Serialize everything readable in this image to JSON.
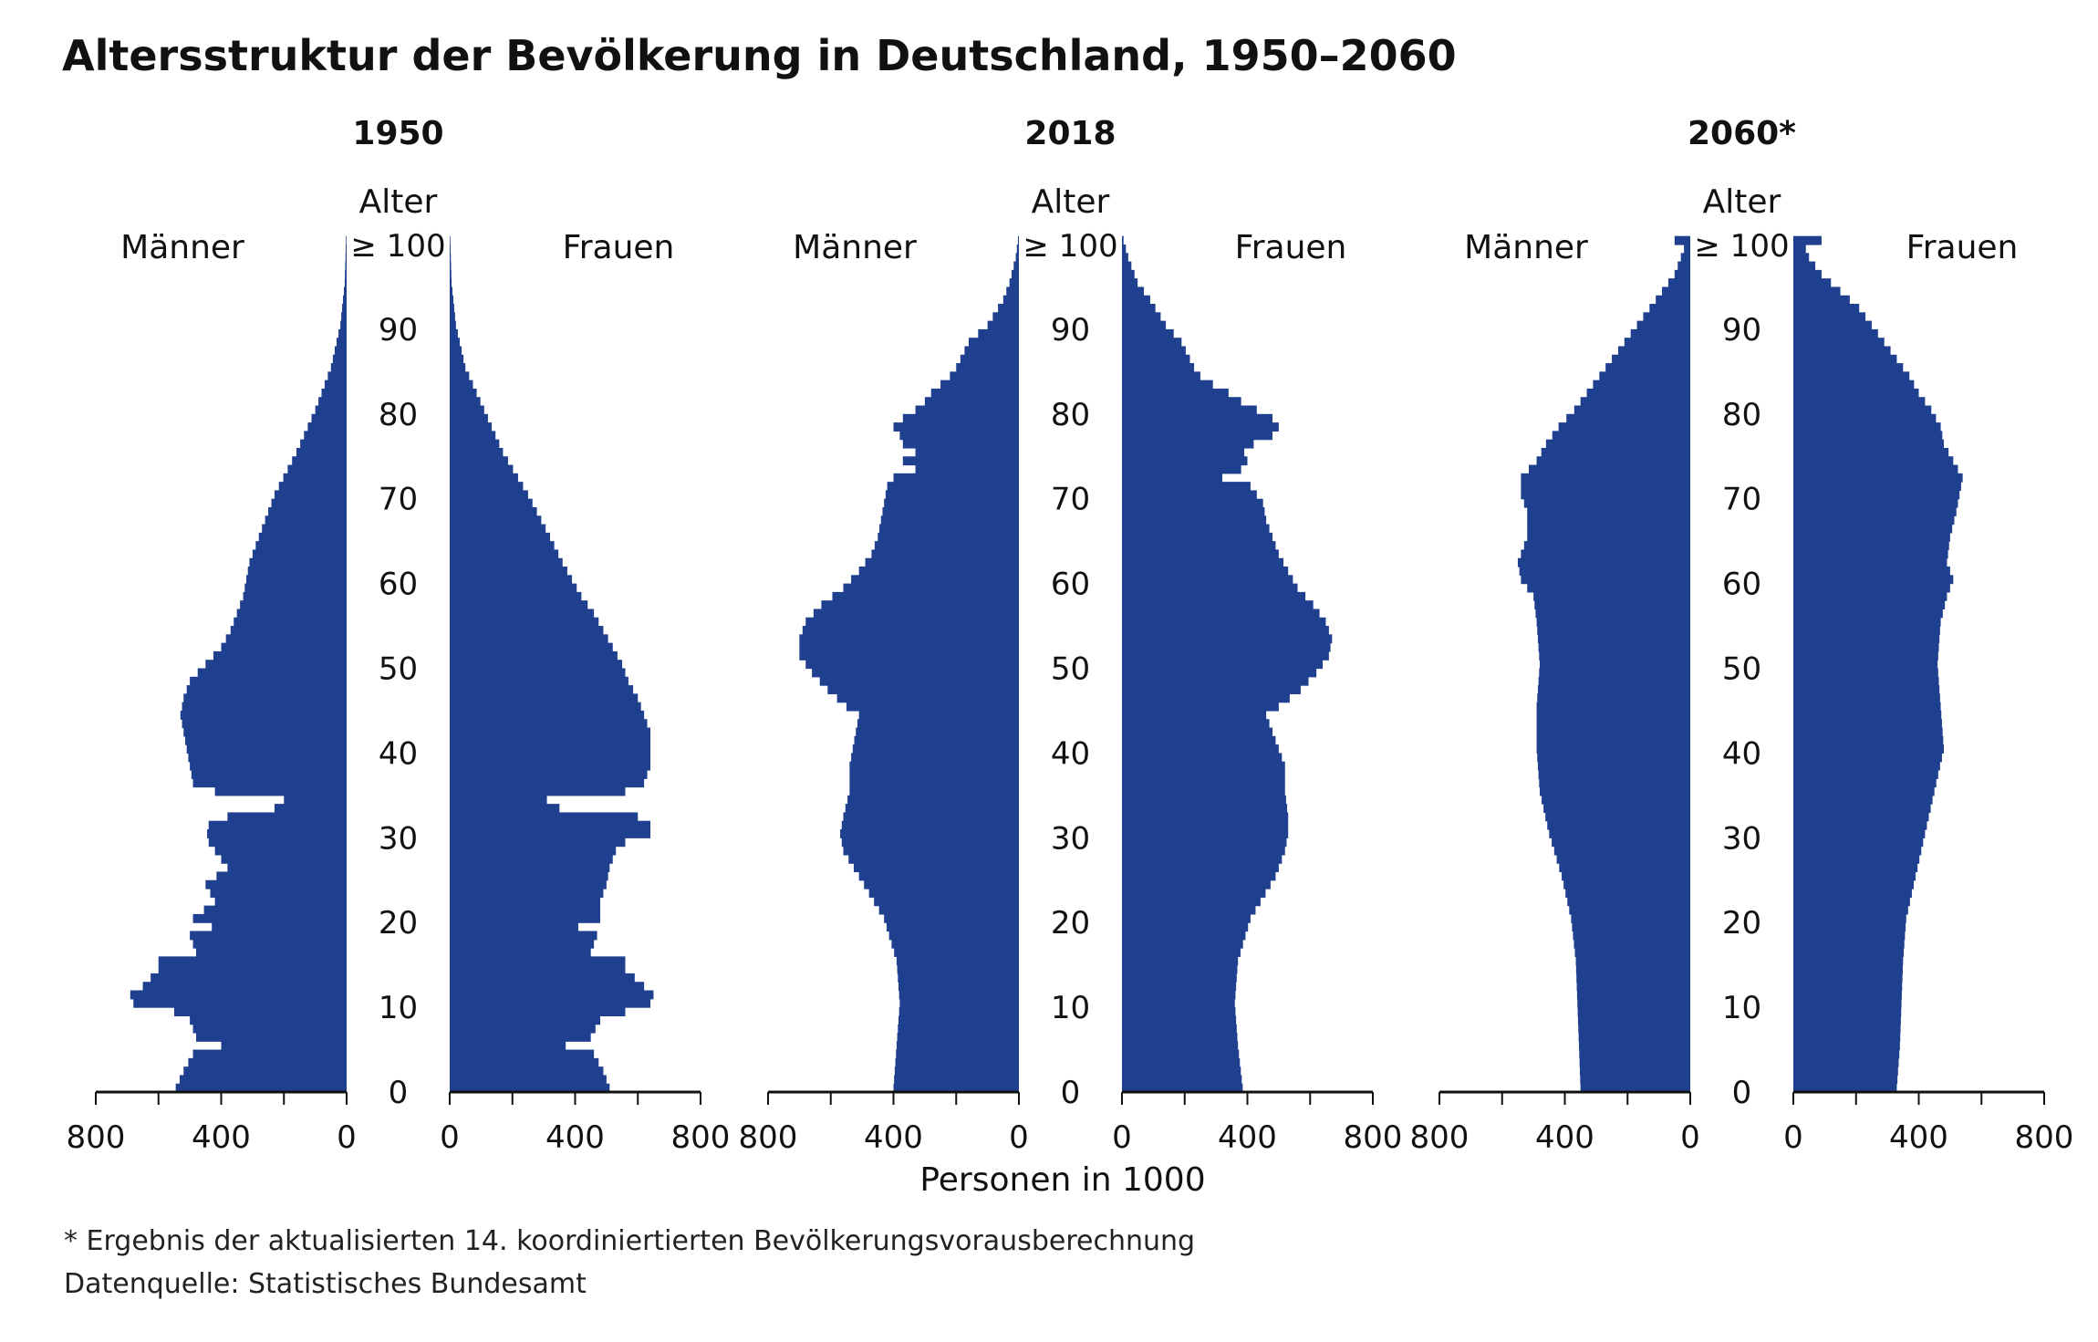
{
  "chart_data": {
    "type": "population-pyramid",
    "title": "Altersstruktur der Bevölkerung in Deutschland, 1950–2060",
    "axis_label_age": "Alter",
    "age_top_label": "≥ 100",
    "age_ticks": [
      0,
      10,
      20,
      30,
      40,
      50,
      60,
      70,
      80,
      90
    ],
    "left_label": "Männer",
    "right_label": "Frauen",
    "xlabel": "Personen in 1000",
    "xlim": [
      0,
      800
    ],
    "x_ticks": [
      800,
      400,
      0
    ],
    "x_ticks_right": [
      0,
      400,
      800
    ],
    "bar_color": "#1f3f8f",
    "panels": [
      {
        "name": "1950",
        "men": {
          "ages": [
            0,
            2,
            4,
            5,
            6,
            8,
            9,
            10,
            11,
            12,
            14,
            15,
            16,
            18,
            19,
            20,
            22,
            24,
            26,
            28,
            29,
            30,
            31,
            32,
            33,
            34,
            35,
            36,
            38,
            40,
            42,
            44,
            46,
            48,
            50,
            52,
            54,
            56,
            58,
            60,
            62,
            65,
            70,
            75,
            80,
            85,
            90,
            95,
            100
          ],
          "values": [
            545,
            520,
            490,
            400,
            480,
            500,
            550,
            680,
            690,
            650,
            600,
            600,
            480,
            500,
            430,
            490,
            420,
            450,
            380,
            420,
            440,
            445,
            440,
            380,
            230,
            200,
            420,
            490,
            500,
            510,
            520,
            530,
            520,
            500,
            450,
            400,
            370,
            350,
            330,
            320,
            310,
            280,
            230,
            160,
            100,
            50,
            20,
            6,
            2
          ]
        },
        "women": {
          "ages": [
            0,
            2,
            4,
            5,
            6,
            8,
            9,
            10,
            11,
            12,
            14,
            15,
            16,
            18,
            19,
            20,
            22,
            24,
            26,
            28,
            29,
            30,
            31,
            32,
            33,
            34,
            35,
            36,
            38,
            40,
            42,
            44,
            46,
            48,
            50,
            52,
            54,
            56,
            58,
            60,
            62,
            65,
            70,
            75,
            80,
            85,
            90,
            95,
            100
          ],
          "values": [
            510,
            490,
            460,
            370,
            450,
            480,
            560,
            640,
            650,
            620,
            560,
            560,
            450,
            470,
            410,
            480,
            480,
            500,
            510,
            530,
            560,
            640,
            640,
            600,
            350,
            310,
            560,
            620,
            640,
            640,
            640,
            620,
            600,
            570,
            550,
            520,
            490,
            460,
            420,
            390,
            360,
            320,
            250,
            170,
            110,
            50,
            20,
            6,
            2
          ]
        }
      },
      {
        "name": "2018",
        "men": {
          "ages": [
            0,
            5,
            10,
            15,
            20,
            25,
            28,
            30,
            32,
            35,
            38,
            40,
            42,
            44,
            45,
            47,
            49,
            51,
            53,
            55,
            57,
            59,
            61,
            63,
            65,
            67,
            69,
            71,
            72,
            73,
            74,
            75,
            76,
            77,
            78,
            79,
            80,
            81,
            82,
            83,
            84,
            85,
            88,
            90,
            93,
            95,
            98,
            100
          ],
          "values": [
            400,
            390,
            380,
            390,
            430,
            510,
            560,
            570,
            560,
            540,
            540,
            530,
            520,
            510,
            550,
            610,
            660,
            700,
            700,
            680,
            630,
            560,
            510,
            470,
            450,
            440,
            430,
            420,
            400,
            330,
            370,
            330,
            370,
            380,
            400,
            370,
            330,
            300,
            280,
            250,
            220,
            200,
            160,
            100,
            50,
            30,
            10,
            3
          ]
        },
        "women": {
          "ages": [
            0,
            5,
            10,
            15,
            20,
            25,
            28,
            30,
            32,
            35,
            38,
            40,
            42,
            44,
            45,
            47,
            49,
            51,
            53,
            55,
            57,
            59,
            61,
            63,
            65,
            67,
            69,
            71,
            72,
            73,
            74,
            75,
            76,
            77,
            78,
            79,
            80,
            81,
            82,
            83,
            84,
            85,
            88,
            90,
            93,
            95,
            98,
            100
          ],
          "values": [
            385,
            370,
            360,
            370,
            410,
            490,
            520,
            530,
            530,
            520,
            520,
            500,
            480,
            460,
            500,
            570,
            620,
            660,
            670,
            650,
            610,
            560,
            530,
            500,
            480,
            460,
            450,
            410,
            320,
            380,
            400,
            390,
            420,
            480,
            500,
            480,
            430,
            380,
            340,
            290,
            250,
            230,
            190,
            140,
            90,
            50,
            20,
            5
          ]
        }
      },
      {
        "name": "2060*",
        "men": {
          "ages": [
            0,
            5,
            10,
            15,
            20,
            25,
            30,
            35,
            40,
            45,
            50,
            55,
            58,
            60,
            62,
            65,
            68,
            70,
            72,
            74,
            76,
            78,
            80,
            82,
            84,
            86,
            88,
            90,
            92,
            94,
            96,
            98,
            99,
            100
          ],
          "values": [
            350,
            355,
            360,
            365,
            380,
            410,
            450,
            480,
            490,
            490,
            480,
            490,
            500,
            540,
            550,
            520,
            520,
            540,
            540,
            490,
            460,
            420,
            370,
            330,
            290,
            250,
            210,
            170,
            130,
            90,
            50,
            30,
            20,
            50
          ]
        },
        "women": {
          "ages": [
            0,
            5,
            10,
            15,
            20,
            25,
            30,
            35,
            40,
            45,
            50,
            55,
            58,
            60,
            62,
            65,
            68,
            70,
            72,
            74,
            76,
            78,
            80,
            82,
            84,
            86,
            88,
            90,
            92,
            94,
            96,
            98,
            99,
            100
          ],
          "values": [
            330,
            340,
            345,
            350,
            360,
            390,
            420,
            450,
            480,
            470,
            460,
            470,
            490,
            510,
            490,
            500,
            520,
            530,
            540,
            510,
            480,
            470,
            440,
            400,
            370,
            330,
            290,
            250,
            210,
            150,
            90,
            50,
            40,
            90
          ]
        }
      }
    ]
  },
  "footnotes": [
    "* Ergebnis der aktualisierten 14. koordiniertierten Bevölkerungsvorausberechnung",
    "Datenquelle: Statistisches Bundesamt"
  ]
}
